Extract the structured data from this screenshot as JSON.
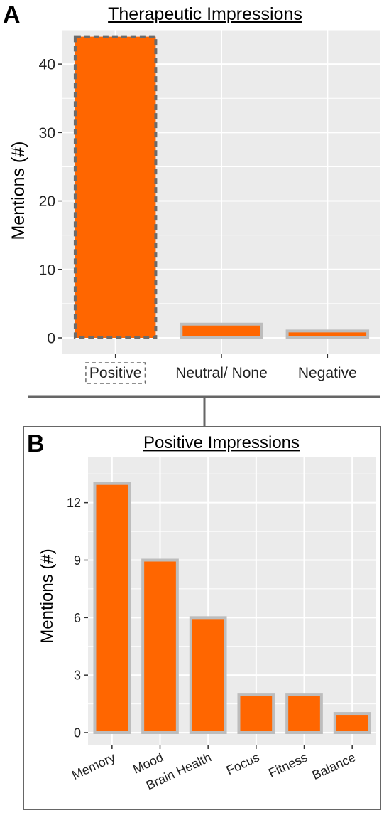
{
  "panels": {
    "a": {
      "letter": "A"
    },
    "b": {
      "letter": "B"
    }
  },
  "colors": {
    "bar_fill": "#ff6600",
    "bar_outline": "#bdbdbd",
    "panel_bg": "#ebebeb",
    "grid": "#ffffff",
    "highlight_outline": "#6b6b6b",
    "connector": "#666666"
  },
  "chart_data": [
    {
      "type": "bar",
      "title": "Therapeutic Impressions",
      "ylabel": "Mentions (#)",
      "xlabel": "",
      "categories": [
        "Positive",
        "Neutral/ None",
        "Negative"
      ],
      "values": [
        44,
        2,
        1
      ],
      "ylim": [
        0,
        45
      ],
      "yticks": [
        0,
        10,
        20,
        30,
        40
      ],
      "grid": true,
      "highlighted_category": "Positive"
    },
    {
      "type": "bar",
      "title": "Positive Impressions",
      "ylabel": "Mentions (#)",
      "xlabel": "",
      "categories": [
        "Memory",
        "Mood",
        "Brain Health",
        "Focus",
        "Fitness",
        "Balance"
      ],
      "values": [
        13,
        9,
        6,
        2,
        2,
        1
      ],
      "ylim": [
        0,
        14.4
      ],
      "yticks": [
        0,
        3,
        6,
        9,
        12
      ],
      "grid": true,
      "x_tick_rotation": "angled"
    }
  ]
}
